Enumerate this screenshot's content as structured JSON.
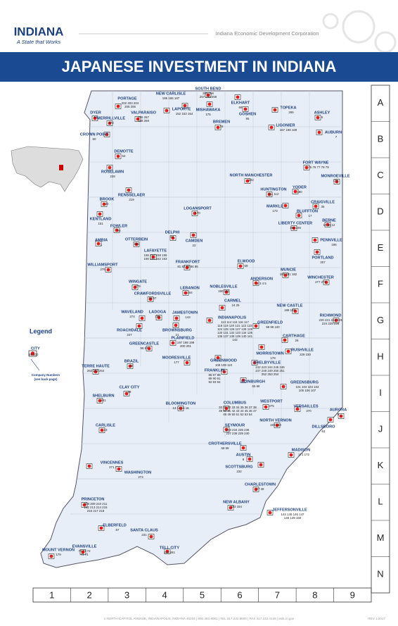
{
  "header": {
    "logo": "INDIANA",
    "tagline": "A State that Works",
    "organization": "Indiana Economic Development Corporation",
    "title": "JAPANESE INVESTMENT IN INDIANA"
  },
  "legend": {
    "title": "Legend",
    "city": "CITY",
    "numbers": "99 100",
    "note": [
      "Company Numbers",
      "(see back page)"
    ]
  },
  "grid": {
    "rows": [
      "A",
      "B",
      "C",
      "D",
      "E",
      "F",
      "G",
      "H",
      "I",
      "J",
      "K",
      "L",
      "M",
      "N"
    ],
    "columns": [
      "1",
      "2",
      "3",
      "4",
      "5",
      "6",
      "7",
      "8",
      "9"
    ]
  },
  "cities": [
    {
      "name": "PORTAGE",
      "numbers": [
        "202 203 204",
        "205 206"
      ]
    },
    {
      "name": "NEW CARLISLE",
      "numbers": [
        "185 186 187"
      ]
    },
    {
      "name": "SOUTH BEND",
      "numbers": [
        "255 256",
        "257 258 259"
      ]
    },
    {
      "name": "ELKHART",
      "numbers": [
        "68"
      ]
    },
    {
      "name": "DYER",
      "numbers": [
        "64"
      ]
    },
    {
      "name": "MERRILLVILLE",
      "numbers": [
        "174"
      ]
    },
    {
      "name": "VALPARAISO",
      "numbers": [
        "266 267",
        "268 269"
      ]
    },
    {
      "name": "LAPORTE",
      "numbers": [
        "152 153 154"
      ]
    },
    {
      "name": "MISHAWAKA",
      "numbers": [
        "175"
      ]
    },
    {
      "name": "GOSHEN",
      "numbers": [
        "95"
      ]
    },
    {
      "name": "TOPEKA",
      "numbers": [
        "265"
      ]
    },
    {
      "name": "ASHLEY",
      "numbers": [
        "6"
      ]
    },
    {
      "name": "BREMEN",
      "numbers": [
        "19"
      ]
    },
    {
      "name": "LIGONIER",
      "numbers": [
        "167 168 169"
      ]
    },
    {
      "name": "CROWN POINT",
      "numbers": [
        "60"
      ]
    },
    {
      "name": "AUBURN",
      "numbers": [
        "7"
      ]
    },
    {
      "name": "DEMOTTE",
      "numbers": [
        "62"
      ]
    },
    {
      "name": "ROSELAWN",
      "numbers": [
        "228"
      ]
    },
    {
      "name": "FORT WAYNE",
      "numbers": [
        "75 76 77 78 79"
      ]
    },
    {
      "name": "NORTH MANCHESTER",
      "numbers": [
        "192"
      ]
    },
    {
      "name": "MONROEVILLE",
      "numbers": [
        "176"
      ]
    },
    {
      "name": "RENSSELAER",
      "numbers": [
        "219"
      ]
    },
    {
      "name": "HUNTINGTON",
      "numbers": [
        "111 112"
      ]
    },
    {
      "name": "YODER",
      "numbers": [
        "280"
      ]
    },
    {
      "name": "BROOK",
      "numbers": [
        "20"
      ]
    },
    {
      "name": "MARKLE",
      "numbers": [
        "173"
      ]
    },
    {
      "name": "CRAIGVILLE",
      "numbers": [
        "35"
      ]
    },
    {
      "name": "BLUFFTON",
      "numbers": [
        "17"
      ]
    },
    {
      "name": "LOGANSPORT",
      "numbers": [
        "170"
      ]
    },
    {
      "name": "KENTLAND",
      "numbers": [
        "151"
      ]
    },
    {
      "name": "LIBERTY CENTER",
      "numbers": [
        "165 166"
      ]
    },
    {
      "name": "BERNE",
      "numbers": [
        "10 11 12"
      ]
    },
    {
      "name": "FOWLER",
      "numbers": [
        "80"
      ]
    },
    {
      "name": "DELPHI",
      "numbers": [
        "61"
      ]
    },
    {
      "name": "CAMDEN",
      "numbers": [
        "22"
      ]
    },
    {
      "name": "OTTERBEIN",
      "numbers": [
        "195"
      ]
    },
    {
      "name": "AMBIA",
      "numbers": [
        "1"
      ]
    },
    {
      "name": "PENNVILLE",
      "numbers": [
        "196"
      ]
    },
    {
      "name": "PORTLAND",
      "numbers": [
        "207"
      ]
    },
    {
      "name": "LAFAYETTE",
      "numbers": [
        "156 157 158 159",
        "160 161 162 163"
      ]
    },
    {
      "name": "FRANKFORT",
      "numbers": [
        "81 82 83 84 85"
      ]
    },
    {
      "name": "ELWOOD",
      "numbers": [
        "69"
      ]
    },
    {
      "name": "WILLIAMSPORT",
      "numbers": [
        "276"
      ]
    },
    {
      "name": "MUNCIE",
      "numbers": [
        "180 181 182"
      ]
    },
    {
      "name": "ANDERSON",
      "numbers": [
        "2 3 4 5"
      ]
    },
    {
      "name": "WINCHESTER",
      "numbers": [
        "277 278"
      ]
    },
    {
      "name": "WINGATE",
      "numbers": [
        "279"
      ]
    },
    {
      "name": "NOBLESVILLE",
      "numbers": [
        "190 191"
      ]
    },
    {
      "name": "LEBANON",
      "numbers": [
        "164"
      ]
    },
    {
      "name": "CRAWFORDSVILLE",
      "numbers": [
        "56 57"
      ]
    },
    {
      "name": "CARMEL",
      "numbers": [
        "24 25"
      ]
    },
    {
      "name": "NEW CASTLE",
      "numbers": [
        "188 189"
      ]
    },
    {
      "name": "WAVELAND",
      "numbers": [
        "274"
      ]
    },
    {
      "name": "LADOGA",
      "numbers": [
        "155"
      ]
    },
    {
      "name": "JAMESTOWN",
      "numbers": [
        "143"
      ]
    },
    {
      "name": "INDIANAPOLIS",
      "numbers": [
        "113 114 115 116 117",
        "118 119 120 121 122 123",
        "124 125 126 127 128 129",
        "130 131 132 133 134 135",
        "136 137 138 139 140 141",
        "142"
      ]
    },
    {
      "name": "RICHMOND",
      "numbers": [
        "220 221 222 223",
        "224 225 226"
      ]
    },
    {
      "name": "GREENFIELD",
      "numbers": [
        "98 99 100"
      ]
    },
    {
      "name": "BROWNSBURG",
      "numbers": [
        "21"
      ]
    },
    {
      "name": "ROACHDALE",
      "numbers": [
        "227"
      ]
    },
    {
      "name": "CARTHAGE",
      "numbers": [
        "26"
      ]
    },
    {
      "name": "PLAINFIELD",
      "numbers": [
        "197 198 199",
        "200 201"
      ]
    },
    {
      "name": "GREENCASTLE",
      "numbers": [
        "96 97"
      ]
    },
    {
      "name": "MORRISTOWN",
      "numbers": [
        "178"
      ]
    },
    {
      "name": "RUSHVILLE",
      "numbers": [
        "229 230"
      ]
    },
    {
      "name": "MOORESVILLE",
      "numbers": [
        "177"
      ]
    },
    {
      "name": "GREENWOOD",
      "numbers": [
        "108 109 110"
      ]
    },
    {
      "name": "SHELBYVILLE",
      "numbers": [
        "242 243 244 245 246",
        "247 248 249 250 251",
        "252 253 254"
      ]
    },
    {
      "name": "BRAZIL",
      "numbers": [
        "18"
      ]
    },
    {
      "name": "TERRE HAUTE",
      "numbers": [
        "262 263 264"
      ]
    },
    {
      "name": "FRANKLIN",
      "numbers": [
        "86 87 88",
        "89 90 91",
        "92 93 94"
      ]
    },
    {
      "name": "EDINBURGH",
      "numbers": [
        "65 66"
      ]
    },
    {
      "name": "GREENSBURG",
      "numbers": [
        "101 102 103 104",
        "105 106 107"
      ]
    },
    {
      "name": "CLAY CITY",
      "numbers": [
        "29"
      ]
    },
    {
      "name": "SHELBURN",
      "numbers": [
        "241"
      ]
    },
    {
      "name": "BLOOMINGTON",
      "numbers": [
        "13 14 15 16"
      ]
    },
    {
      "name": "COLUMBUS",
      "numbers": [
        "30 31 32 33 34 35 36 37 38",
        "39 40 41 42 43 44 45 46 47",
        "48 49 50 51 52 53 54"
      ]
    },
    {
      "name": "WESTPORT",
      "numbers": [
        "275"
      ]
    },
    {
      "name": "VERSAILLES",
      "numbers": [
        "270"
      ]
    },
    {
      "name": "AURORA",
      "numbers": [
        "8"
      ]
    },
    {
      "name": "CARLISLE",
      "numbers": [
        "23"
      ]
    },
    {
      "name": "NORTH VERNON",
      "numbers": [
        "193 194"
      ]
    },
    {
      "name": "DILLSBORO",
      "numbers": [
        "63"
      ]
    },
    {
      "name": "SEYMOUR",
      "numbers": [
        "233 234 235 236",
        "237 238 239 240"
      ]
    },
    {
      "name": "CROTHERSVILLE",
      "numbers": [
        "58 59"
      ]
    },
    {
      "name": "MADISON",
      "numbers": [
        "171 172"
      ]
    },
    {
      "name": "AUSTIN",
      "numbers": [
        "9"
      ]
    },
    {
      "name": "VINCENNES",
      "numbers": [
        "271 272"
      ]
    },
    {
      "name": "WASHINGTON",
      "numbers": [
        "273"
      ]
    },
    {
      "name": "SCOTTSBURG",
      "numbers": [
        "232"
      ]
    },
    {
      "name": "CHARLESTOWN",
      "numbers": [
        "27 28"
      ]
    },
    {
      "name": "NEW ALBANY",
      "numbers": [
        "183 184"
      ]
    },
    {
      "name": "PRINCETON",
      "numbers": [
        "208 209 210 211",
        "212 213 214 215",
        "216 217 218"
      ]
    },
    {
      "name": "JEFFERSONVILLE",
      "numbers": [
        "144 145 146 147",
        "148 149 150"
      ]
    },
    {
      "name": "ELBERFELD",
      "numbers": [
        "67"
      ]
    },
    {
      "name": "SANTA CLAUS",
      "numbers": [
        "231"
      ]
    },
    {
      "name": "TELL CITY",
      "numbers": [
        "260 261"
      ]
    },
    {
      "name": "MOUNT VERNON",
      "numbers": [
        "179"
      ]
    },
    {
      "name": "EVANSVILLE",
      "numbers": [
        "70 71 72",
        "73 74"
      ]
    }
  ],
  "footer": {
    "address": "1 NORTH CAPITOL AVENUE, INDIANAPOLIS, INDIANA 46204  |  800.463.8081  |  TEL 317.232.8800  |  FAX 317.232.4146  |  iedc.in.gov",
    "revision": "REV 1.2017"
  }
}
